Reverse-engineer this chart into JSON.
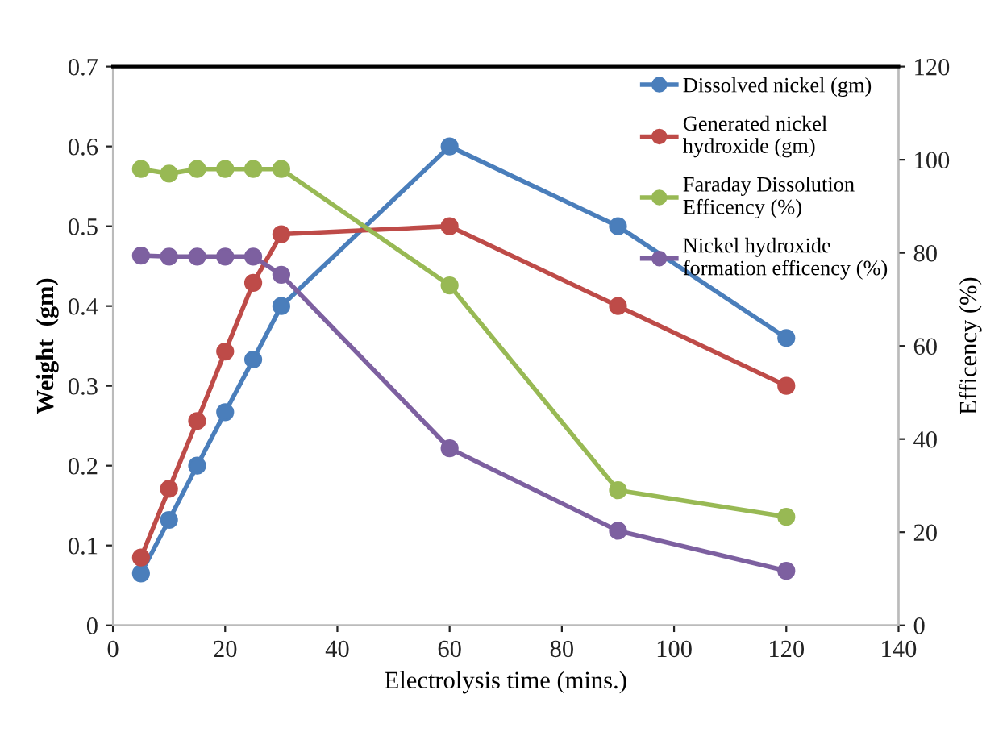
{
  "chart_data": {
    "type": "line",
    "xlabel": "Electrolysis time (mins.)",
    "ylabel": "Weight  (gm)",
    "y2label": "Efficency (%)",
    "x": [
      5,
      10,
      15,
      20,
      25,
      30,
      60,
      90,
      120
    ],
    "series": [
      {
        "name": "Dissolved nickel (gm)",
        "color": "#4a7ebb",
        "values": [
          0.065,
          0.132,
          0.2,
          0.267,
          0.333,
          0.4,
          0.6,
          0.5,
          0.36
        ]
      },
      {
        "name": "Generated nickel hydroxide (gm)",
        "color": "#be4b48",
        "values": [
          0.085,
          0.171,
          0.256,
          0.343,
          0.429,
          0.49,
          0.5,
          0.4,
          0.3
        ]
      },
      {
        "name": "Faraday Dissolution Efficency (%)",
        "color": "#98b954",
        "axis": "y2",
        "values": [
          98,
          97,
          98,
          98,
          98,
          98,
          73,
          29,
          23.3
        ]
      },
      {
        "name": "Nickel hydroxide formation efficency (%)",
        "color": "#7d60a0",
        "axis": "y2",
        "values": [
          79.4,
          79.2,
          79.2,
          79.2,
          79.2,
          75.3,
          38,
          20.3,
          11.7
        ]
      }
    ],
    "xlim": [
      0,
      140
    ],
    "xticks": [
      0,
      20,
      40,
      60,
      80,
      100,
      120,
      140
    ],
    "ylim": [
      0,
      0.7
    ],
    "yticks": [
      0,
      0.1,
      0.2,
      0.3,
      0.4,
      0.5,
      0.6,
      0.7
    ],
    "y2lim": [
      0,
      120
    ],
    "y2ticks": [
      0,
      20,
      40,
      60,
      80,
      100,
      120
    ],
    "marker": "circle",
    "line_style": "solid",
    "legend": "top right",
    "grid": false
  }
}
